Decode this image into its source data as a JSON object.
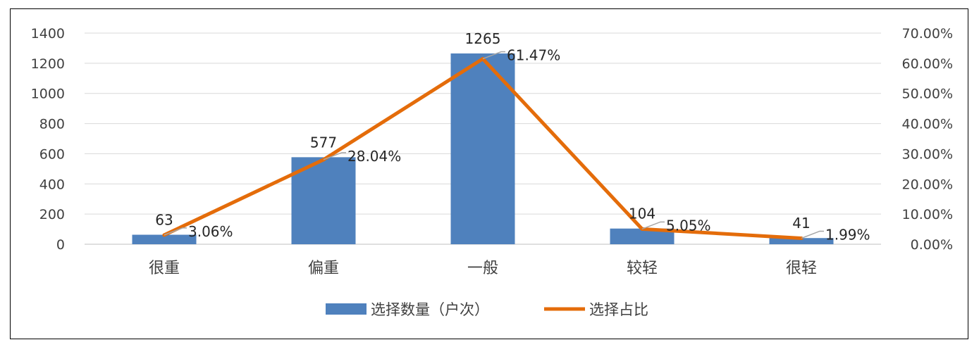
{
  "chart_data": {
    "type": "bar",
    "categories": [
      "很重",
      "偏重",
      "一般",
      "较轻",
      "很轻"
    ],
    "series": [
      {
        "name": "选择数量（户次）",
        "kind": "bar",
        "axis": "left",
        "color": "#4F81BD",
        "values": [
          63,
          577,
          1265,
          104,
          41
        ],
        "labels": [
          "63",
          "577",
          "1265",
          "104",
          "41"
        ]
      },
      {
        "name": "选择占比",
        "kind": "line",
        "axis": "right",
        "color": "#E46C0A",
        "values": [
          3.06,
          28.04,
          61.47,
          5.05,
          1.99
        ],
        "labels": [
          "3.06%",
          "28.04%",
          "61.47%",
          "5.05%",
          "1.99%"
        ]
      }
    ],
    "left_axis": {
      "ylim": [
        0,
        1400
      ],
      "ticks": [
        "0",
        "200",
        "400",
        "600",
        "800",
        "1000",
        "1200",
        "1400"
      ]
    },
    "right_axis": {
      "ylim": [
        0,
        70
      ],
      "ticks": [
        "0.00%",
        "10.00%",
        "20.00%",
        "30.00%",
        "40.00%",
        "50.00%",
        "60.00%",
        "70.00%"
      ]
    },
    "grid": true,
    "legend_position": "bottom"
  }
}
